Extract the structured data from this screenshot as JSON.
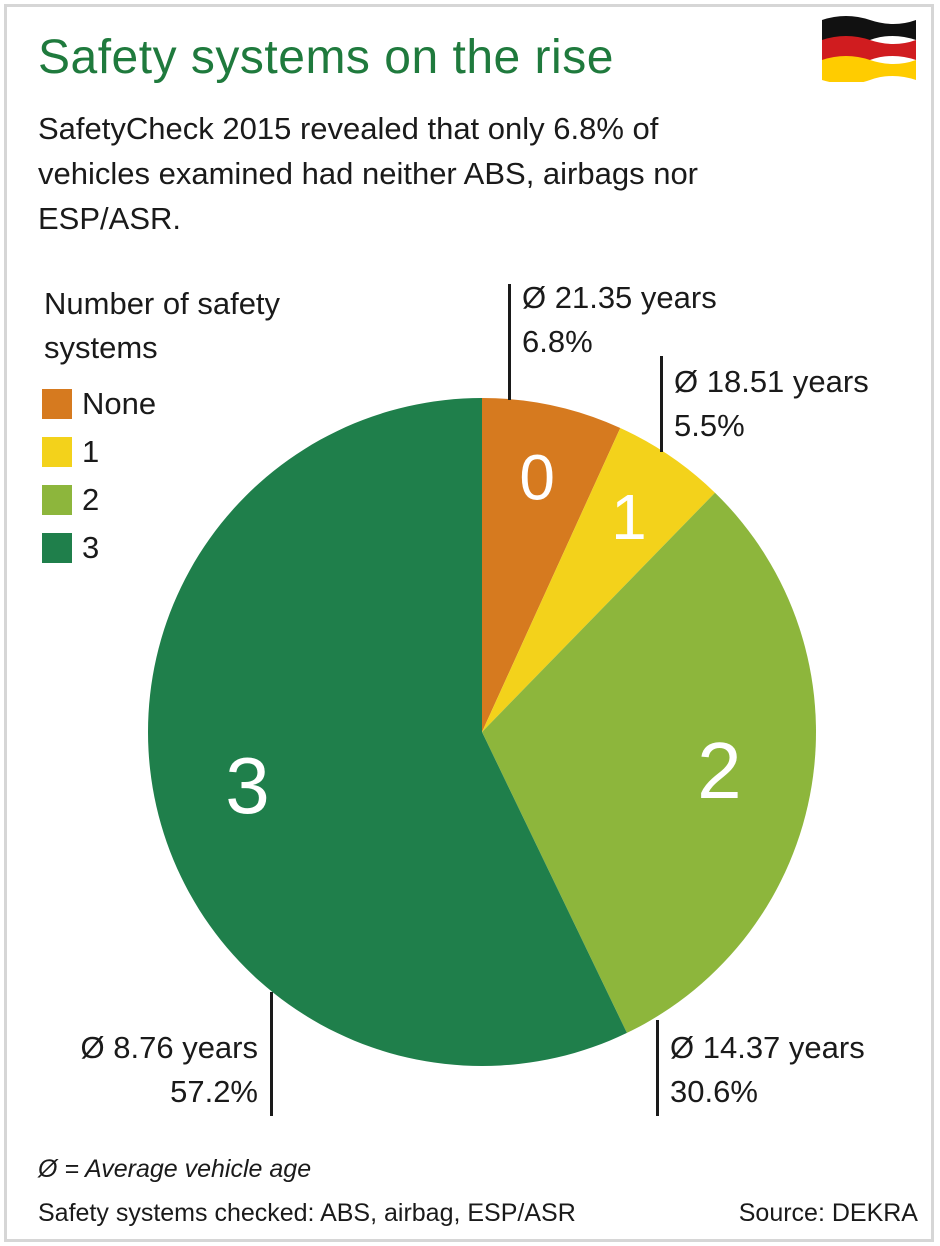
{
  "header": {
    "title": "Safety systems on the rise",
    "subtitle": "SafetyCheck 2015 revealed that only 6.8% of vehicles examined had neither ABS, airbags nor ESP/ASR."
  },
  "flag_icon": "germany-flag-icon",
  "legend": {
    "title": "Number of safety systems",
    "items": [
      {
        "label": "None",
        "color": "#d67a1f"
      },
      {
        "label": "1",
        "color": "#f3d21b"
      },
      {
        "label": "2",
        "color": "#8db63c"
      },
      {
        "label": "3",
        "color": "#1f7f4b"
      }
    ]
  },
  "chart_data": {
    "type": "pie",
    "slices": [
      {
        "label": "0",
        "value": 6.8,
        "value_label": "6.8%",
        "age_label": "Ø 21.35 years",
        "color": "#d67a1f"
      },
      {
        "label": "1",
        "value": 5.5,
        "value_label": "5.5%",
        "age_label": "Ø 18.51 years",
        "color": "#f3d21b"
      },
      {
        "label": "2",
        "value": 30.6,
        "value_label": "30.6%",
        "age_label": "Ø 14.37 years",
        "color": "#8db63c"
      },
      {
        "label": "3",
        "value": 57.2,
        "value_label": "57.2%",
        "age_label": "Ø 8.76 years",
        "color": "#1f7f4b"
      }
    ]
  },
  "footer": {
    "note": "Ø = Average vehicle age",
    "checked": "Safety systems checked: ABS, airbag, ESP/ASR",
    "source": "Source: DEKRA"
  }
}
